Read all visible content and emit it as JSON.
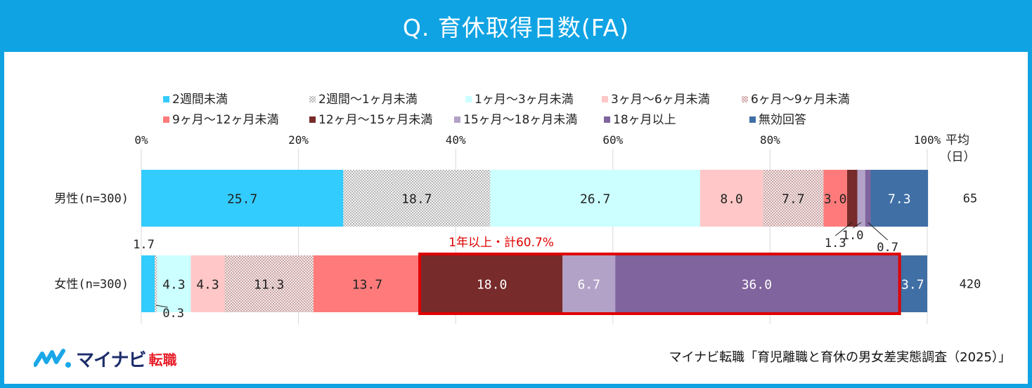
{
  "title": "Q. 育休取得日数(FA)",
  "chart_data": {
    "type": "bar",
    "orientation": "horizontal",
    "stacked": true,
    "xlim": [
      0,
      100
    ],
    "x_ticks": [
      "0%",
      "20%",
      "40%",
      "60%",
      "80%",
      "100%"
    ],
    "series_names": [
      "2週間未満",
      "2週間～1ヶ月未満",
      "1ヶ月～3ヶ月未満",
      "3ヶ月～6ヶ月未満",
      "6ヶ月～9ヶ月未満",
      "9ヶ月～12ヶ月未満",
      "12ヶ月～15ヶ月未満",
      "15ヶ月～18ヶ月未満",
      "18ヶ月以上",
      "無効回答"
    ],
    "series_colors": [
      "#33ccff",
      "#dddddd",
      "#ccffff",
      "#ffc7c7",
      "#e6d2d2",
      "#ff7b7b",
      "#772b2b",
      "#b3a2c7",
      "#80649e",
      "#3f6fa5"
    ],
    "rows": [
      {
        "label": "男性(n=300)",
        "values": [
          25.7,
          18.7,
          26.7,
          8.0,
          7.7,
          3.0,
          1.3,
          1.0,
          0.7,
          7.3
        ],
        "value_labels": [
          "25.7",
          "18.7",
          "26.7",
          "8.0",
          "7.7",
          "3.0",
          "1.3",
          "1.0",
          "0.7",
          "7.3"
        ],
        "average": "65"
      },
      {
        "label": "女性(n=300)",
        "values": [
          1.7,
          0.3,
          4.3,
          4.3,
          11.3,
          13.7,
          18.0,
          6.7,
          36.0,
          3.7
        ],
        "value_labels": [
          "1.7",
          "0.3",
          "4.3",
          "4.3",
          "11.3",
          "13.7",
          "18.0",
          "6.7",
          "36.0",
          "3.7"
        ],
        "average": "420"
      }
    ],
    "average_header": [
      "平均",
      "（日）"
    ],
    "annotation": "1年以上・計60.7%"
  },
  "footer": {
    "source": "マイナビ転職「育児離職と育休の男女差実態調査（2025）」",
    "logo_name": "マイナビ",
    "logo_sub": "転職"
  }
}
